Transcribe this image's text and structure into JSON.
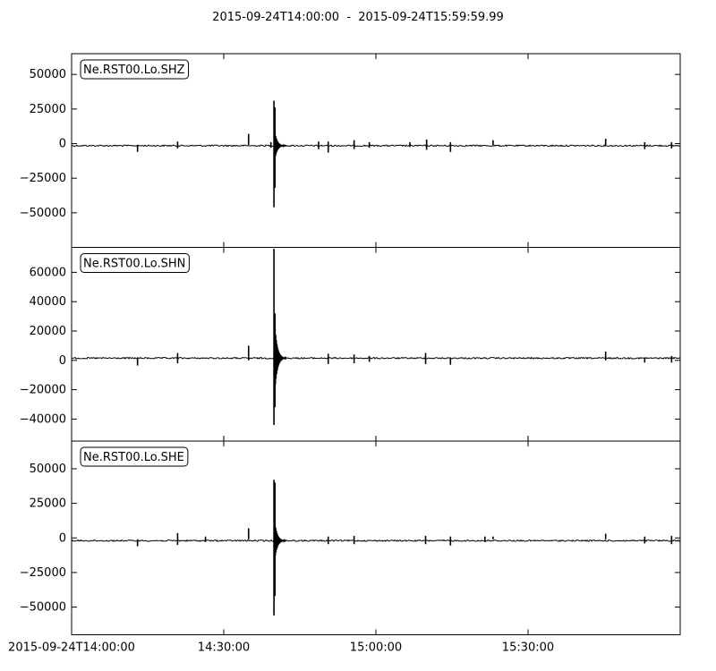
{
  "chart_data": {
    "type": "line",
    "title": "2015-09-24T14:00:00  -  2015-09-24T15:59:59.99",
    "x_ticks": [
      "2015-09-24T14:00:00",
      "14:30:00",
      "15:00:00",
      "15:30:00"
    ],
    "x_tick_minutes": [
      0,
      30,
      60,
      90
    ],
    "xlim_minutes": [
      0,
      120
    ],
    "grid": false,
    "panels": [
      {
        "label": "Ne.RST00.Lo.SHZ",
        "ylim": [
          -75000,
          65000
        ],
        "yticks": [
          50000,
          25000,
          0,
          -25000,
          -50000
        ],
        "ytick_labels": [
          "50000",
          "25000",
          "0",
          "−25000",
          "−50000"
        ],
        "baseline": -1500,
        "events": [
          {
            "t": 13.0,
            "hi": -1000,
            "lo": -6000
          },
          {
            "t": 20.9,
            "hi": 1500,
            "lo": -3500
          },
          {
            "t": 34.9,
            "hi": 7000,
            "lo": -1000
          },
          {
            "t": 39.3,
            "hi": 1000,
            "lo": -3000
          },
          {
            "t": 39.9,
            "hi": 31000,
            "lo": -46000
          },
          {
            "t": 40.1,
            "hi": 26000,
            "lo": -32000
          },
          {
            "t": 48.7,
            "hi": 1500,
            "lo": -4000
          },
          {
            "t": 50.6,
            "hi": 1500,
            "lo": -6500
          },
          {
            "t": 55.7,
            "hi": 2500,
            "lo": -4000
          },
          {
            "t": 58.7,
            "hi": 1000,
            "lo": -3000
          },
          {
            "t": 66.7,
            "hi": 1000,
            "lo": -2500
          },
          {
            "t": 70.0,
            "hi": 3000,
            "lo": -4500
          },
          {
            "t": 74.7,
            "hi": 1000,
            "lo": -6000
          },
          {
            "t": 83.1,
            "hi": 2500,
            "lo": -1000
          },
          {
            "t": 105.3,
            "hi": 3500,
            "lo": -1000
          },
          {
            "t": 113.0,
            "hi": 1000,
            "lo": -4000
          },
          {
            "t": 118.3,
            "hi": 1000,
            "lo": -3500
          }
        ]
      },
      {
        "label": "Ne.RST00.Lo.SHN",
        "ylim": [
          -55000,
          77000
        ],
        "yticks": [
          60000,
          40000,
          20000,
          0,
          -20000,
          -40000
        ],
        "ytick_labels": [
          "60000",
          "40000",
          "20000",
          "0",
          "−20000",
          "−40000"
        ],
        "baseline": 1500,
        "events": [
          {
            "t": 13.0,
            "hi": 2000,
            "lo": -3500
          },
          {
            "t": 20.9,
            "hi": 5000,
            "lo": -2000
          },
          {
            "t": 34.9,
            "hi": 10000,
            "lo": 0
          },
          {
            "t": 39.9,
            "hi": 76000,
            "lo": -44000
          },
          {
            "t": 40.1,
            "hi": 32000,
            "lo": -32000
          },
          {
            "t": 50.6,
            "hi": 4500,
            "lo": -2500
          },
          {
            "t": 55.7,
            "hi": 4000,
            "lo": -2000
          },
          {
            "t": 58.7,
            "hi": 3000,
            "lo": -1000
          },
          {
            "t": 69.8,
            "hi": 5000,
            "lo": -2500
          },
          {
            "t": 74.7,
            "hi": 2000,
            "lo": -3000
          },
          {
            "t": 105.3,
            "hi": 6000,
            "lo": 0
          },
          {
            "t": 113.0,
            "hi": 2000,
            "lo": -1500
          },
          {
            "t": 118.3,
            "hi": 3000,
            "lo": -1500
          }
        ]
      },
      {
        "label": "Ne.RST00.Lo.SHE",
        "ylim": [
          -70000,
          70000
        ],
        "yticks": [
          50000,
          25000,
          0,
          -25000,
          -50000
        ],
        "ytick_labels": [
          "50000",
          "25000",
          "0",
          "−25000",
          "−50000"
        ],
        "baseline": -2000,
        "events": [
          {
            "t": 13.0,
            "hi": -1000,
            "lo": -6000
          },
          {
            "t": 20.9,
            "hi": 3500,
            "lo": -5000
          },
          {
            "t": 26.4,
            "hi": 1000,
            "lo": -3000
          },
          {
            "t": 34.9,
            "hi": 7000,
            "lo": -1000
          },
          {
            "t": 39.9,
            "hi": 42000,
            "lo": -56000
          },
          {
            "t": 40.1,
            "hi": 40000,
            "lo": -42000
          },
          {
            "t": 50.6,
            "hi": 1000,
            "lo": -4500
          },
          {
            "t": 55.7,
            "hi": 1500,
            "lo": -4500
          },
          {
            "t": 69.8,
            "hi": 1500,
            "lo": -4500
          },
          {
            "t": 74.7,
            "hi": 1000,
            "lo": -5500
          },
          {
            "t": 81.5,
            "hi": 1000,
            "lo": -3000
          },
          {
            "t": 83.1,
            "hi": 1000,
            "lo": -1000
          },
          {
            "t": 105.3,
            "hi": 3000,
            "lo": -1000
          },
          {
            "t": 113.0,
            "hi": 1000,
            "lo": -4000
          },
          {
            "t": 118.3,
            "hi": 1500,
            "lo": -4500
          }
        ]
      }
    ]
  }
}
